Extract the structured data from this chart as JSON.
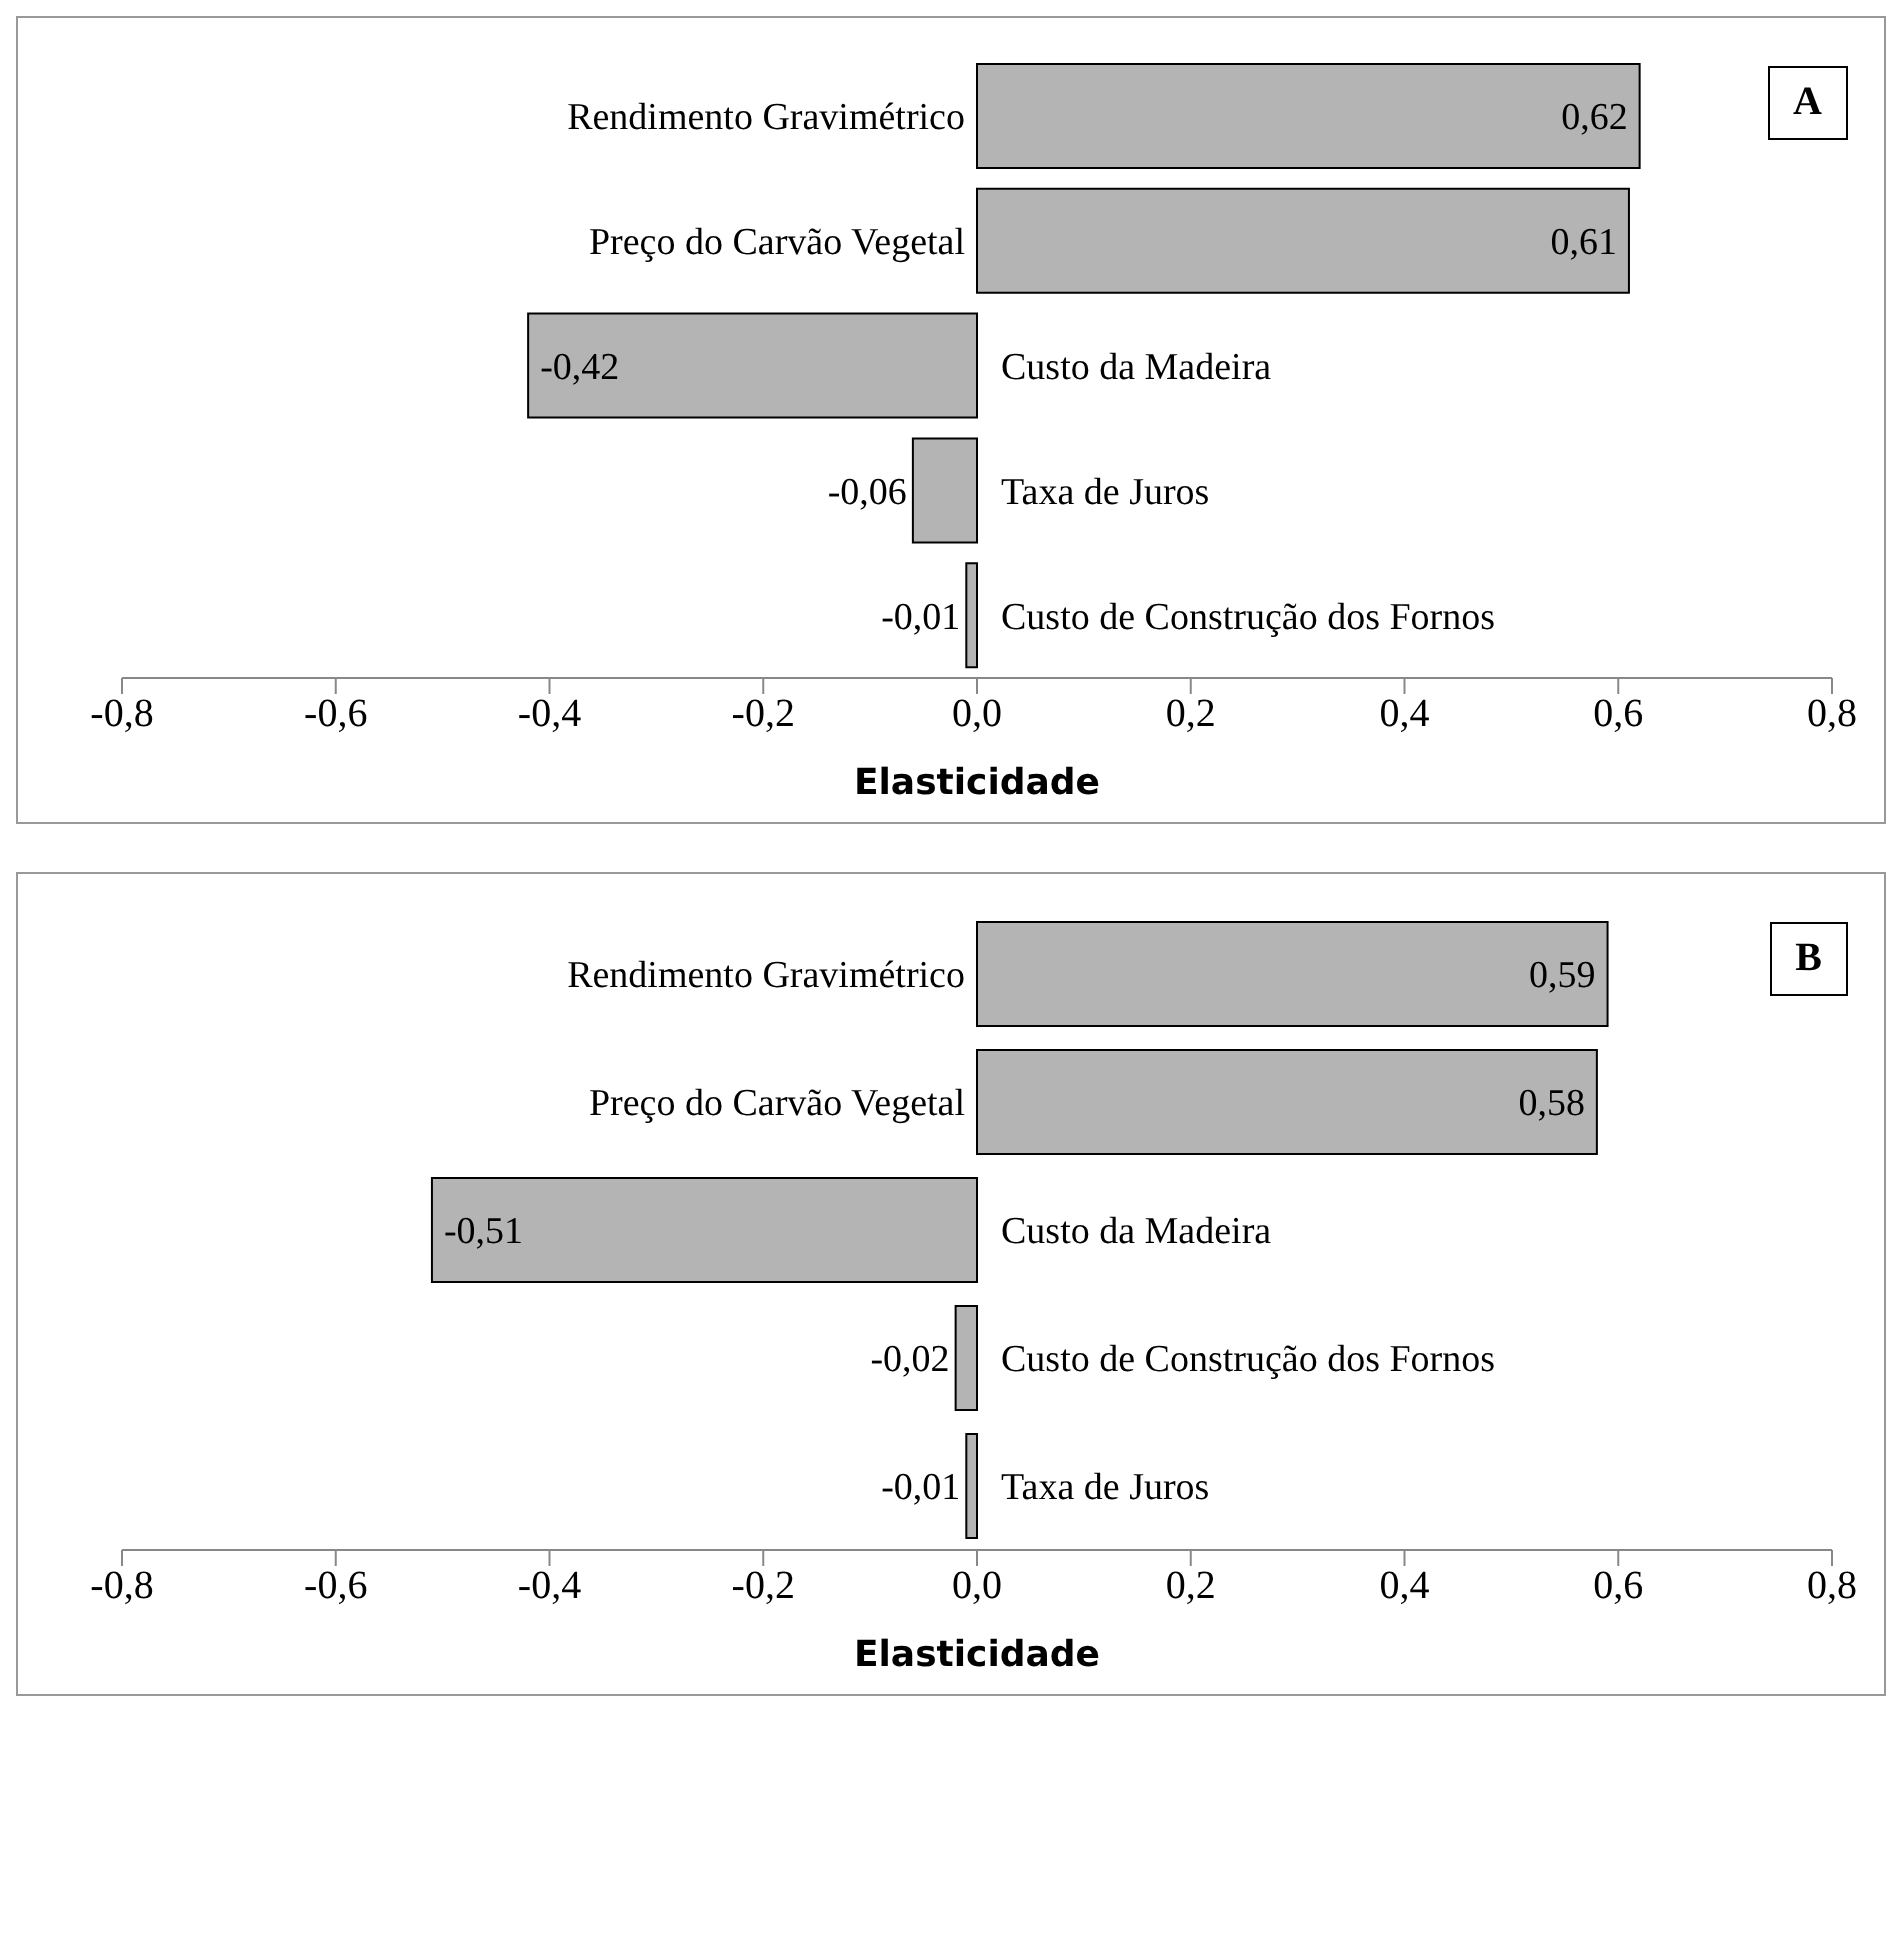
{
  "chart_data": [
    {
      "type": "bar",
      "orientation": "horizontal",
      "title": "A",
      "xlabel": "Elasticidade",
      "categories": [
        "Rendimento Gravimétrico",
        "Preço do Carvão Vegetal",
        "Custo da Madeira",
        "Taxa de Juros",
        "Custo de Construção dos Fornos"
      ],
      "values": [
        0.62,
        0.61,
        -0.42,
        -0.06,
        -0.01
      ],
      "value_labels": [
        "0,62",
        "0,61",
        "-0,42",
        "-0,06",
        "-0,01"
      ],
      "color": "#b4b4b4",
      "xlim": [
        -0.8,
        0.8
      ],
      "xticks": [
        {
          "value": -0.8,
          "label": "-0,8"
        },
        {
          "value": -0.6,
          "label": "-0,6"
        },
        {
          "value": -0.4,
          "label": "-0,4"
        },
        {
          "value": -0.2,
          "label": "-0,2"
        },
        {
          "value": 0,
          "label": "0,0"
        },
        {
          "value": 0.2,
          "label": "0,2"
        },
        {
          "value": 0.4,
          "label": "0,4"
        },
        {
          "value": 0.6,
          "label": "0,6"
        },
        {
          "value": 0.8,
          "label": "0,8"
        }
      ],
      "grid": false
    },
    {
      "type": "bar",
      "orientation": "horizontal",
      "title": "B",
      "xlabel": "Elasticidade",
      "categories": [
        "Rendimento Gravimétrico",
        "Preço do Carvão Vegetal",
        "Custo da Madeira",
        "Custo de Construção dos Fornos",
        "Taxa de Juros"
      ],
      "values": [
        0.59,
        0.58,
        -0.51,
        -0.02,
        -0.01
      ],
      "value_labels": [
        "0,59",
        "0,58",
        "-0,51",
        "-0,02",
        "-0,01"
      ],
      "color": "#b4b4b4",
      "xlim": [
        -0.8,
        0.8
      ],
      "xticks": [
        {
          "value": -0.8,
          "label": "-0,8"
        },
        {
          "value": -0.6,
          "label": "-0,6"
        },
        {
          "value": -0.4,
          "label": "-0,4"
        },
        {
          "value": -0.2,
          "label": "-0,2"
        },
        {
          "value": 0,
          "label": "0,0"
        },
        {
          "value": 0.2,
          "label": "0,2"
        },
        {
          "value": 0.4,
          "label": "0,4"
        },
        {
          "value": 0.6,
          "label": "0,6"
        },
        {
          "value": 0.8,
          "label": "0,8"
        }
      ],
      "grid": false
    }
  ]
}
